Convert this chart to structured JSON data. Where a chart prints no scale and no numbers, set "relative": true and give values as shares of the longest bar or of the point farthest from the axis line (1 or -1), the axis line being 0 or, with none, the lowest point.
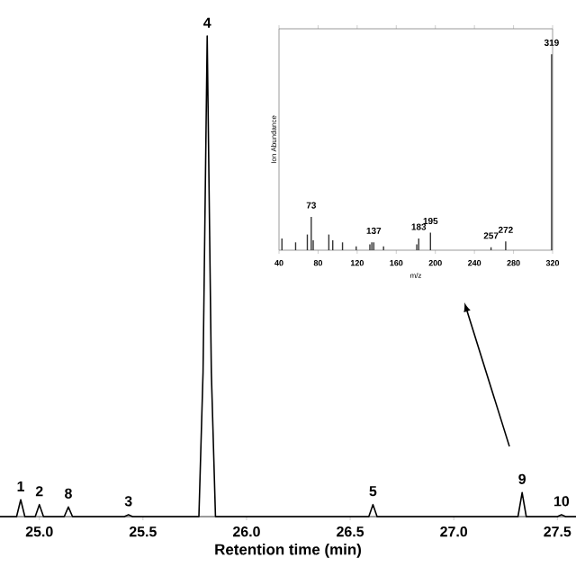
{
  "chart_data": [
    {
      "type": "line",
      "xlabel": "Retention time (min)",
      "relative": true,
      "tick_labels": "x",
      "xlim": [
        24.81,
        27.59
      ],
      "xticks": [
        {
          "value": 25,
          "label": "25.0"
        },
        {
          "value": 25.5,
          "label": "25.5"
        },
        {
          "value": 26,
          "label": "26.0"
        },
        {
          "value": 26.5,
          "label": "26.5"
        },
        {
          "value": 27,
          "label": "27.0"
        },
        {
          "value": 27.5,
          "label": "27.5"
        }
      ],
      "series": [
        {
          "color": "#000000",
          "x": [
            24.81,
            24.89,
            24.91,
            24.93,
            24.98,
            25.0,
            25.02,
            25.12,
            25.14,
            25.16,
            25.41,
            25.43,
            25.45,
            25.77,
            25.79,
            25.81,
            25.83,
            25.85,
            26.59,
            26.61,
            26.63,
            27.31,
            27.33,
            27.35,
            27.5,
            27.52,
            27.54,
            27.59
          ],
          "values": [
            0,
            0,
            0.035,
            0,
            0,
            0.025,
            0,
            0,
            0.02,
            0,
            0,
            0.004,
            0,
            0,
            0.3,
            1,
            0.3,
            0,
            0,
            0.025,
            0,
            0,
            0.05,
            0,
            0,
            0.004,
            0,
            0
          ]
        }
      ],
      "annotations": [
        {
          "text": "1",
          "x": 24.91,
          "y": 0.035
        },
        {
          "text": "2",
          "x": 25.0,
          "y": 0.025
        },
        {
          "text": "8",
          "x": 25.14,
          "y": 0.02
        },
        {
          "text": "3",
          "x": 25.43,
          "y": 0.004
        },
        {
          "text": "4",
          "x": 25.81,
          "y": 1
        },
        {
          "text": "5",
          "x": 26.61,
          "y": 0.025
        },
        {
          "text": "9",
          "x": 27.33,
          "y": 0.05
        },
        {
          "text": "10",
          "x": 27.52,
          "y": 0.004
        }
      ]
    },
    {
      "type": "bar",
      "xlabel": "m/z",
      "ylabel": "Ion Abundance",
      "relative": true,
      "tick_labels": "x",
      "xlim": [
        40,
        320
      ],
      "xticks": [
        40,
        80,
        120,
        160,
        200,
        240,
        280,
        320
      ],
      "series": [
        {
          "color": "#333333",
          "x": [
            43,
            57,
            69,
            73,
            75,
            91,
            95,
            105,
            119,
            133,
            135,
            137,
            147,
            181,
            183,
            195,
            257,
            272,
            319
          ],
          "values": [
            0.06,
            0.04,
            0.08,
            0.17,
            0.05,
            0.08,
            0.05,
            0.04,
            0.02,
            0.03,
            0.04,
            0.04,
            0.02,
            0.03,
            0.06,
            0.09,
            0.015,
            0.045,
            1
          ]
        }
      ],
      "annotations": [
        {
          "text": "73",
          "x": 73,
          "y": 0.17
        },
        {
          "text": "137",
          "x": 137,
          "y": 0.04
        },
        {
          "text": "183",
          "x": 183,
          "y": 0.06
        },
        {
          "text": "195",
          "x": 195,
          "y": 0.09
        },
        {
          "text": "257",
          "x": 257,
          "y": 0.015
        },
        {
          "text": "272",
          "x": 272,
          "y": 0.045
        },
        {
          "text": "319",
          "x": 319,
          "y": 1
        }
      ]
    }
  ]
}
